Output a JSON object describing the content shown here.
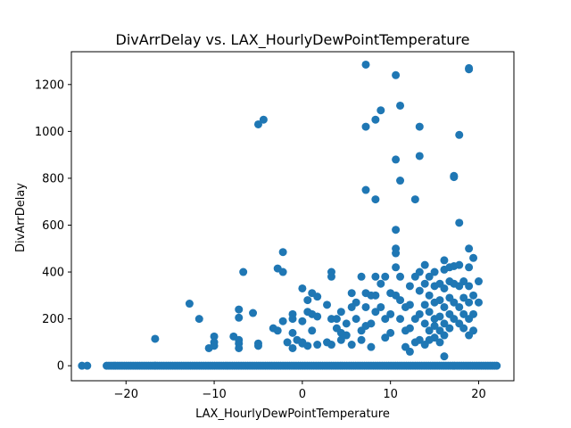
{
  "chart_data": {
    "type": "scatter",
    "title": "DivArrDelay vs. LAX_HourlyDewPointTemperature",
    "xlabel": "LAX_HourlyDewPointTemperature",
    "ylabel": "DivArrDelay",
    "xlim": [
      -26.2,
      24.0
    ],
    "ylim": [
      -64,
      1340
    ],
    "xticks": [
      -20,
      -10,
      0,
      10,
      20
    ],
    "xtick_labels": [
      "−20",
      "−10",
      "0",
      "10",
      "20"
    ],
    "yticks": [
      0,
      200,
      400,
      600,
      800,
      1000,
      1200
    ],
    "ytick_labels": [
      "0",
      "200",
      "400",
      "600",
      "800",
      "1000",
      "1200"
    ],
    "grid": false,
    "marker_color": "#1f77b4",
    "baseline_x_range": [
      -22.2,
      22.2
    ],
    "baseline_extra_x": [
      -25.0,
      -24.4,
      -16.7
    ],
    "points": [
      [
        -16.7,
        115
      ],
      [
        -12.8,
        265
      ],
      [
        -11.7,
        200
      ],
      [
        -10.6,
        75
      ],
      [
        -10.0,
        125
      ],
      [
        -10.0,
        100
      ],
      [
        -10.0,
        85
      ],
      [
        -7.8,
        125
      ],
      [
        -7.2,
        110
      ],
      [
        -7.2,
        240
      ],
      [
        -7.2,
        205
      ],
      [
        -7.2,
        95
      ],
      [
        -7.2,
        75
      ],
      [
        -6.7,
        400
      ],
      [
        -5.6,
        225
      ],
      [
        -5.0,
        95
      ],
      [
        -5.0,
        85
      ],
      [
        -5.0,
        1030
      ],
      [
        -4.4,
        1050
      ],
      [
        -3.3,
        160
      ],
      [
        -2.8,
        415
      ],
      [
        -2.8,
        150
      ],
      [
        -2.2,
        485
      ],
      [
        -2.2,
        400
      ],
      [
        -2.2,
        190
      ],
      [
        -1.7,
        100
      ],
      [
        -1.1,
        220
      ],
      [
        -1.1,
        200
      ],
      [
        -1.1,
        140
      ],
      [
        -1.1,
        75
      ],
      [
        -0.6,
        110
      ],
      [
        0.0,
        330
      ],
      [
        0.0,
        190
      ],
      [
        0.0,
        100
      ],
      [
        0.0,
        95
      ],
      [
        0.6,
        280
      ],
      [
        0.6,
        230
      ],
      [
        0.6,
        85
      ],
      [
        1.1,
        310
      ],
      [
        1.1,
        220
      ],
      [
        1.1,
        150
      ],
      [
        1.7,
        295
      ],
      [
        1.7,
        210
      ],
      [
        1.7,
        90
      ],
      [
        2.8,
        260
      ],
      [
        2.8,
        100
      ],
      [
        3.3,
        400
      ],
      [
        3.3,
        380
      ],
      [
        3.3,
        200
      ],
      [
        3.3,
        90
      ],
      [
        3.9,
        200
      ],
      [
        3.9,
        160
      ],
      [
        4.4,
        230
      ],
      [
        4.4,
        140
      ],
      [
        4.4,
        110
      ],
      [
        5.0,
        180
      ],
      [
        5.0,
        130
      ],
      [
        5.6,
        310
      ],
      [
        5.6,
        250
      ],
      [
        5.6,
        90
      ],
      [
        6.1,
        270
      ],
      [
        6.1,
        200
      ],
      [
        6.7,
        380
      ],
      [
        6.7,
        150
      ],
      [
        6.7,
        110
      ],
      [
        7.2,
        310
      ],
      [
        7.2,
        1285
      ],
      [
        7.2,
        1020
      ],
      [
        7.2,
        750
      ],
      [
        7.2,
        250
      ],
      [
        7.2,
        170
      ],
      [
        7.8,
        300
      ],
      [
        7.8,
        180
      ],
      [
        7.8,
        80
      ],
      [
        8.3,
        380
      ],
      [
        8.3,
        1050
      ],
      [
        8.3,
        710
      ],
      [
        8.3,
        300
      ],
      [
        8.3,
        230
      ],
      [
        8.9,
        1090
      ],
      [
        8.9,
        350
      ],
      [
        8.9,
        250
      ],
      [
        9.4,
        380
      ],
      [
        9.4,
        200
      ],
      [
        9.4,
        120
      ],
      [
        10.0,
        310
      ],
      [
        10.0,
        220
      ],
      [
        10.0,
        140
      ],
      [
        10.6,
        1240
      ],
      [
        10.6,
        880
      ],
      [
        10.6,
        580
      ],
      [
        10.6,
        500
      ],
      [
        10.6,
        480
      ],
      [
        10.6,
        420
      ],
      [
        10.6,
        300
      ],
      [
        11.1,
        1110
      ],
      [
        11.1,
        790
      ],
      [
        11.1,
        380
      ],
      [
        11.1,
        280
      ],
      [
        11.1,
        200
      ],
      [
        11.7,
        250
      ],
      [
        11.7,
        150
      ],
      [
        12.2,
        340
      ],
      [
        12.2,
        260
      ],
      [
        12.2,
        160
      ],
      [
        12.8,
        710
      ],
      [
        12.8,
        380
      ],
      [
        12.8,
        200
      ],
      [
        13.3,
        1020
      ],
      [
        13.3,
        895
      ],
      [
        13.3,
        400
      ],
      [
        13.3,
        320
      ],
      [
        13.3,
        220
      ],
      [
        13.3,
        110
      ],
      [
        13.9,
        430
      ],
      [
        13.9,
        350
      ],
      [
        13.9,
        260
      ],
      [
        13.9,
        180
      ],
      [
        14.4,
        380
      ],
      [
        14.4,
        300
      ],
      [
        14.4,
        230
      ],
      [
        14.4,
        150
      ],
      [
        15.0,
        400
      ],
      [
        15.0,
        340
      ],
      [
        15.0,
        270
      ],
      [
        15.0,
        200
      ],
      [
        15.0,
        120
      ],
      [
        15.6,
        350
      ],
      [
        15.6,
        280
      ],
      [
        15.6,
        210
      ],
      [
        15.6,
        150
      ],
      [
        16.1,
        450
      ],
      [
        16.1,
        410
      ],
      [
        16.1,
        330
      ],
      [
        16.1,
        250
      ],
      [
        16.1,
        180
      ],
      [
        16.1,
        40
      ],
      [
        16.7,
        420
      ],
      [
        16.7,
        360
      ],
      [
        16.7,
        290
      ],
      [
        16.7,
        220
      ],
      [
        16.7,
        160
      ],
      [
        17.2,
        810
      ],
      [
        17.2,
        805
      ],
      [
        17.2,
        425
      ],
      [
        17.2,
        350
      ],
      [
        17.2,
        270
      ],
      [
        17.2,
        200
      ],
      [
        17.8,
        985
      ],
      [
        17.8,
        610
      ],
      [
        17.8,
        430
      ],
      [
        17.8,
        340
      ],
      [
        17.8,
        250
      ],
      [
        17.8,
        180
      ],
      [
        18.3,
        360
      ],
      [
        18.3,
        290
      ],
      [
        18.3,
        220
      ],
      [
        18.3,
        160
      ],
      [
        18.9,
        1270
      ],
      [
        18.9,
        1265
      ],
      [
        18.9,
        500
      ],
      [
        18.9,
        420
      ],
      [
        18.9,
        340
      ],
      [
        18.9,
        270
      ],
      [
        18.9,
        200
      ],
      [
        18.9,
        130
      ],
      [
        19.4,
        460
      ],
      [
        19.4,
        300
      ],
      [
        19.4,
        220
      ],
      [
        19.4,
        150
      ],
      [
        20.0,
        360
      ],
      [
        20.0,
        270
      ],
      [
        14.4,
        110
      ],
      [
        15.0,
        170
      ],
      [
        15.6,
        100
      ],
      [
        16.1,
        130
      ],
      [
        13.9,
        90
      ],
      [
        12.8,
        100
      ],
      [
        12.2,
        60
      ],
      [
        11.7,
        80
      ]
    ]
  }
}
